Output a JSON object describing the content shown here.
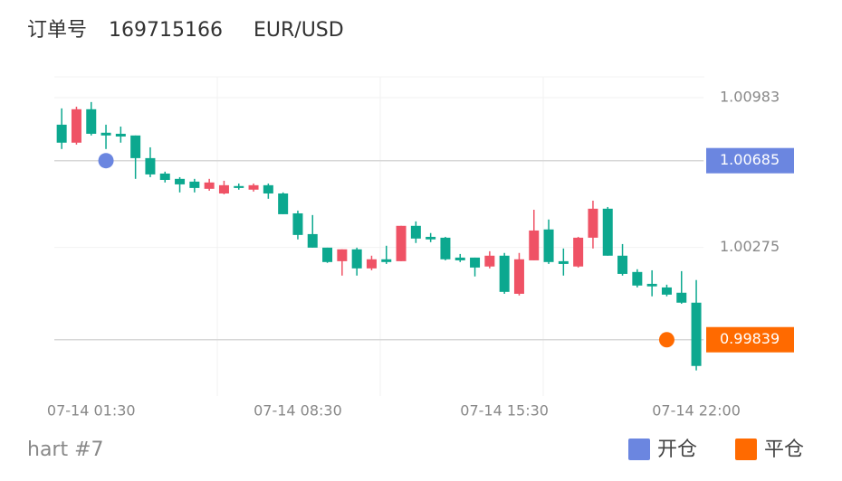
{
  "header": {
    "order_label": "订单号",
    "order_id": "169715166",
    "symbol": "EUR/USD"
  },
  "footer": {
    "chart_name": "hart #7"
  },
  "chart_data": {
    "type": "candlestick",
    "categories": [
      null,
      null,
      "07-14 01:30",
      null,
      null,
      null,
      null,
      null,
      null,
      null,
      null,
      null,
      null,
      null,
      null,
      null,
      "07-14 08:30",
      null,
      null,
      null,
      null,
      null,
      null,
      null,
      null,
      null,
      null,
      null,
      null,
      null,
      "07-14 15:30",
      null,
      null,
      null,
      null,
      null,
      null,
      null,
      null,
      null,
      null,
      null,
      null,
      "07-14 22:00"
    ],
    "open": [
      1.00855,
      1.0077,
      1.00928,
      1.00817,
      1.00812,
      1.00804,
      1.00697,
      1.00624,
      1.00599,
      1.00586,
      1.00552,
      1.0053,
      1.00565,
      1.00548,
      1.00569,
      1.0053,
      1.00436,
      1.00338,
      1.00274,
      1.0021,
      1.00266,
      1.00176,
      1.00219,
      1.0021,
      1.00377,
      1.00325,
      1.00321,
      1.00227,
      1.00227,
      1.00185,
      1.00236,
      1.00056,
      1.00214,
      1.0036,
      1.0021,
      1.00185,
      1.00321,
      1.00458,
      1.00236,
      1.00159,
      1.00103,
      1.00086,
      1.00061,
      1.00014
    ],
    "high": [
      1.00932,
      1.0094,
      1.00962,
      1.00855,
      1.00846,
      1.00804,
      1.00748,
      1.00633,
      1.00607,
      1.00599,
      1.00599,
      1.0059,
      1.00577,
      1.00577,
      1.00577,
      1.00535,
      1.00449,
      1.00428,
      1.00274,
      1.00266,
      1.00274,
      1.00236,
      1.00283,
      1.00377,
      1.00398,
      1.00343,
      1.00325,
      1.00244,
      1.00227,
      1.00257,
      1.00249,
      1.00249,
      1.00453,
      1.00407,
      1.0027,
      1.00325,
      1.00496,
      1.00466,
      1.00291,
      1.00172,
      1.00167,
      1.00099,
      1.00163,
      1.00121
    ],
    "low": [
      1.0074,
      1.00761,
      1.00804,
      1.0074,
      1.0077,
      1.00599,
      1.00607,
      1.00582,
      1.00535,
      1.00535,
      1.00543,
      1.00526,
      1.00548,
      1.00539,
      1.00505,
      1.00432,
      1.00313,
      1.00274,
      1.00202,
      1.00142,
      1.00142,
      1.00167,
      1.00197,
      1.0021,
      1.00296,
      1.003,
      1.00214,
      1.00206,
      1.00138,
      1.00176,
      1.00056,
      1.00048,
      1.00214,
      1.00197,
      1.00142,
      1.0018,
      1.0027,
      1.00236,
      1.00142,
      1.00086,
      1.00044,
      1.00044,
      1.00009,
      0.99694
    ],
    "close": [
      1.0077,
      1.00928,
      1.00812,
      1.00804,
      1.00799,
      1.00697,
      1.0062,
      1.00594,
      1.00573,
      1.00556,
      1.00582,
      1.00569,
      1.00556,
      1.00569,
      1.0053,
      1.00432,
      1.00334,
      1.00274,
      1.00206,
      1.00266,
      1.00176,
      1.00219,
      1.00206,
      1.00377,
      1.00317,
      1.00313,
      1.00219,
      1.00214,
      1.0018,
      1.00236,
      1.00065,
      1.00219,
      1.00355,
      1.00206,
      1.00197,
      1.00321,
      1.00458,
      1.00236,
      1.0015,
      1.00095,
      1.00091,
      1.00052,
      1.00014,
      0.99715
    ],
    "up_color": "#ef5265",
    "down_color": "#0ca88f",
    "ylim": [
      0.99573,
      1.01081
    ],
    "yticks": [
      1.00983,
      1.00275
    ],
    "grid": true,
    "series": [
      {
        "name": "开仓",
        "color": "#6b86e0",
        "index": 3,
        "value": 1.00685
      },
      {
        "name": "平仓",
        "color": "#ff6a00",
        "index": 41,
        "value": 0.99839
      }
    ]
  }
}
